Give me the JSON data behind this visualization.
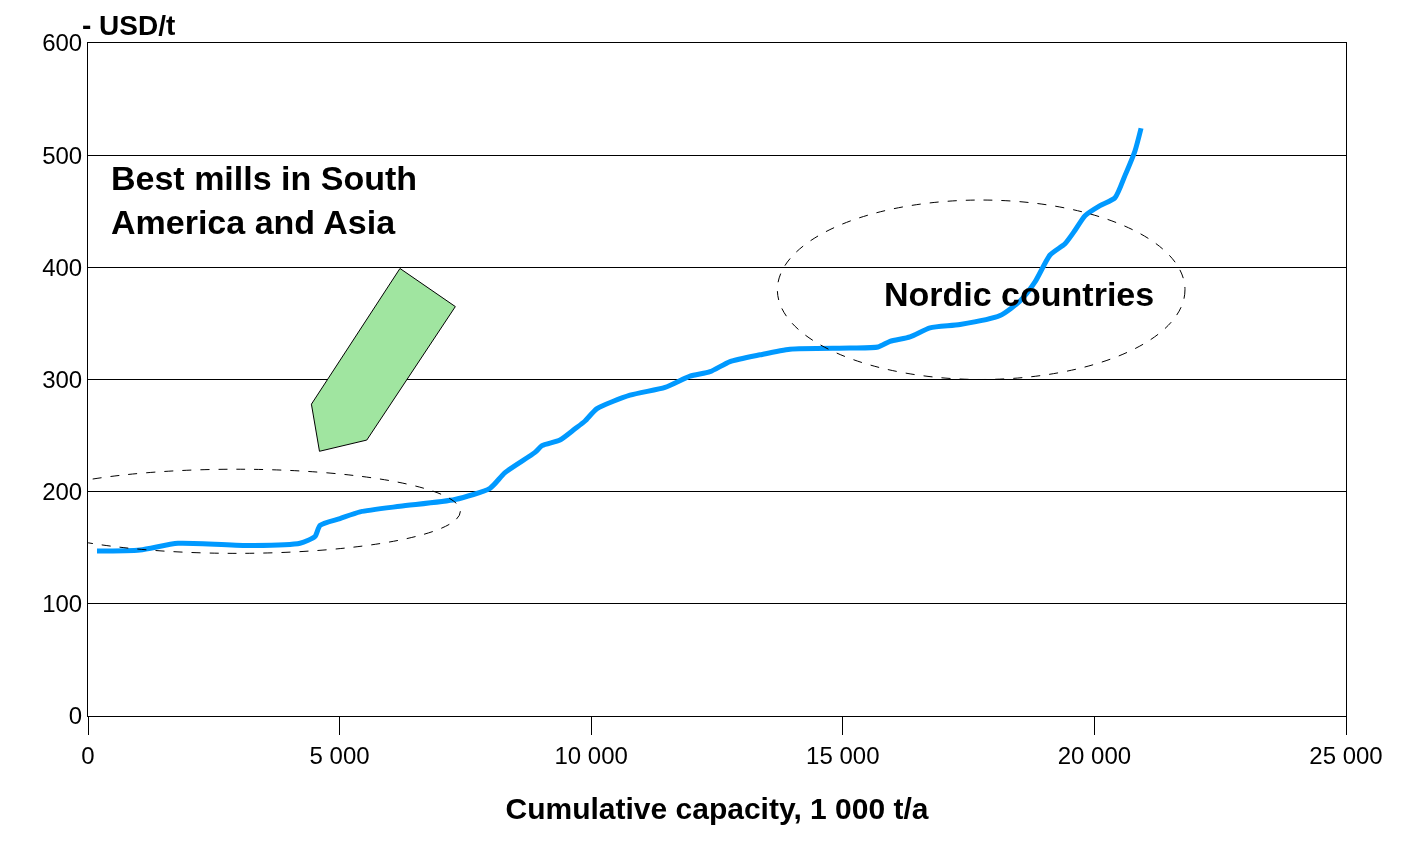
{
  "chart_data": {
    "type": "line",
    "ylabel": "- USD/t",
    "xlabel": "Cumulative capacity, 1 000 t/a",
    "xlim": [
      0,
      25000
    ],
    "xticks": [
      {
        "value": 0,
        "label": "0"
      },
      {
        "value": 5000,
        "label": "5 000"
      },
      {
        "value": 10000,
        "label": "10 000"
      },
      {
        "value": 15000,
        "label": "15 000"
      },
      {
        "value": 20000,
        "label": "20 000"
      },
      {
        "value": 25000,
        "label": "25 000"
      }
    ],
    "ylim": [
      0,
      600
    ],
    "yticks": [
      0,
      100,
      200,
      300,
      400,
      500,
      600
    ],
    "grid": "y",
    "legend": false,
    "marker": "none",
    "line_style": "solid",
    "series": [
      {
        "color": "#0099ff",
        "x": [
          179,
          1033,
          1789,
          3220,
          4213,
          4511,
          4611,
          5008,
          5406,
          6200,
          7293,
          7988,
          8287,
          8883,
          9022,
          9380,
          9678,
          9877,
          10115,
          10771,
          11467,
          11964,
          12361,
          12759,
          13355,
          13951,
          15143,
          15700,
          15938,
          16336,
          16733,
          17330,
          18125,
          18522,
          18820,
          19118,
          19416,
          19615,
          19814,
          20112,
          20410,
          20609,
          20808,
          20927
        ],
        "values": [
          147,
          148,
          154,
          152,
          154,
          160,
          170,
          176,
          182,
          187,
          193,
          203,
          217,
          235,
          241,
          246,
          256,
          263,
          274,
          286,
          293,
          303,
          307,
          316,
          322,
          327,
          328,
          329,
          334,
          338,
          346,
          349,
          357,
          370,
          387,
          411,
          421,
          433,
          446,
          455,
          462,
          482,
          504,
          524
        ]
      }
    ],
    "annotations": [
      "Best mills in South\nAmerica and Asia",
      "Nordic countries"
    ]
  }
}
